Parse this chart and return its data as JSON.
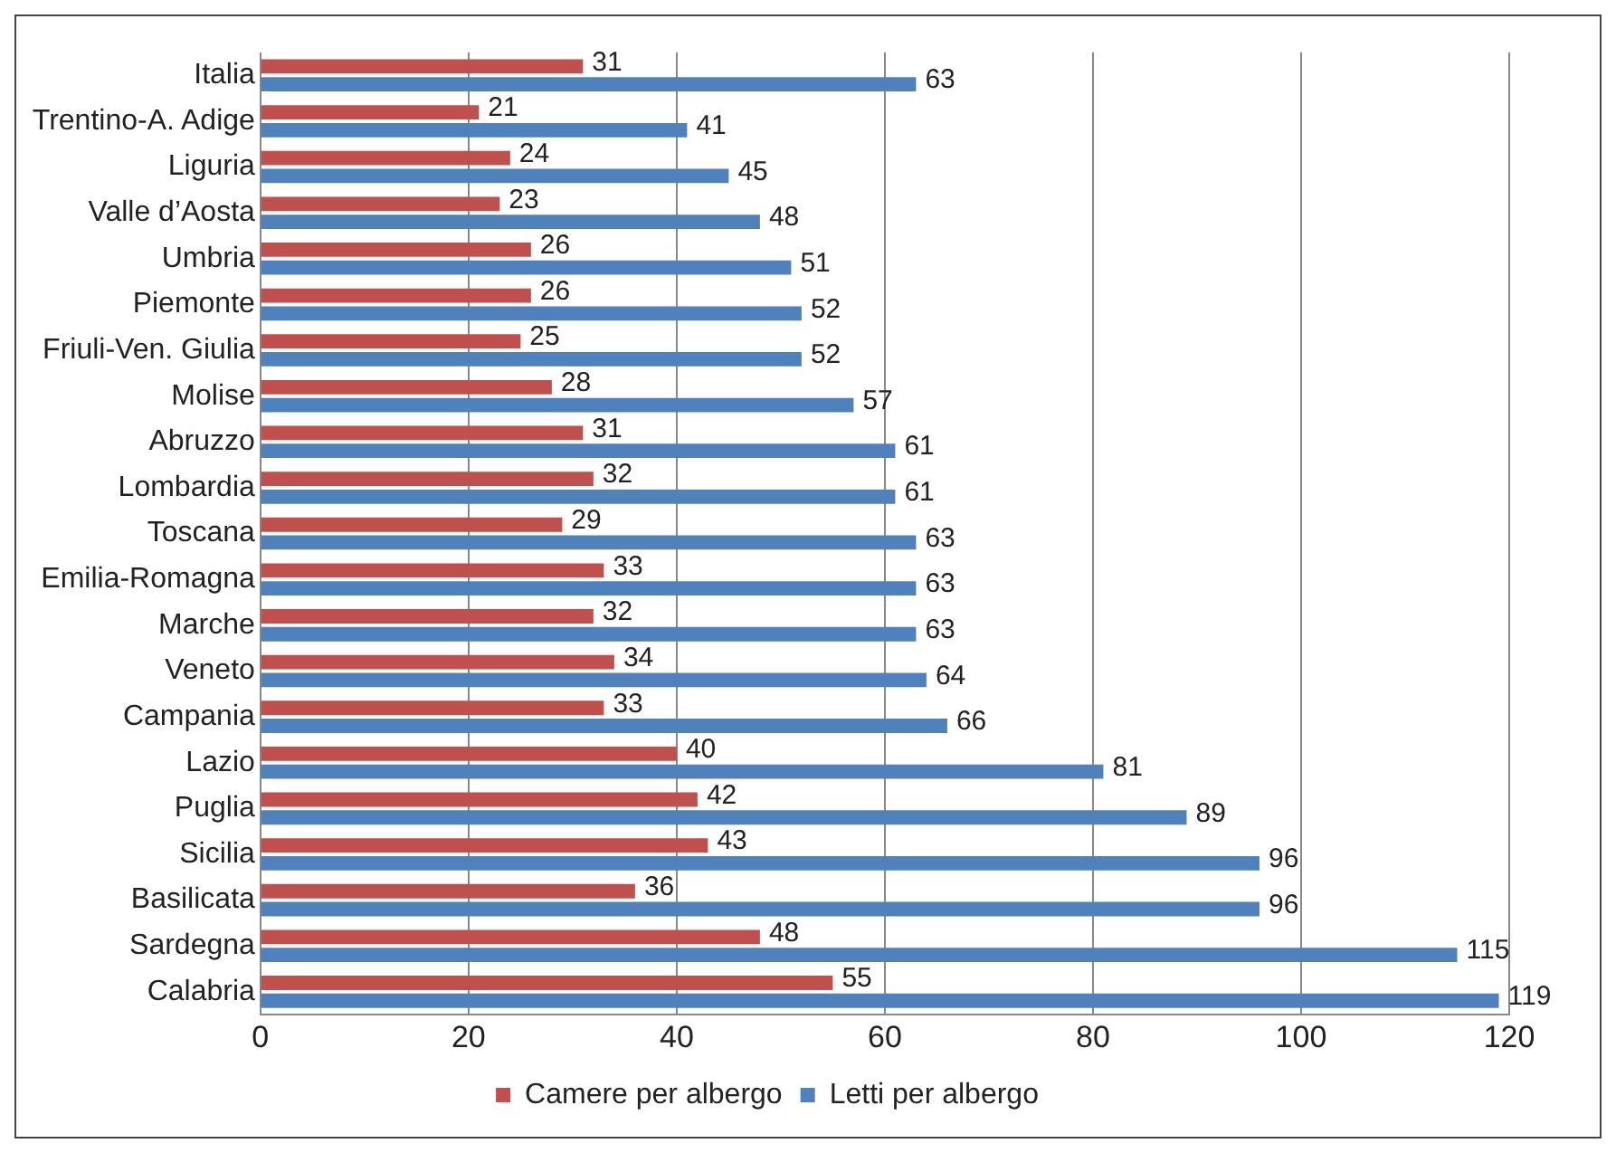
{
  "chart_data": {
    "type": "bar",
    "orientation": "horizontal",
    "categories": [
      "Italia",
      "Trentino-A. Adige",
      "Liguria",
      "Valle d’Aosta",
      "Umbria",
      "Piemonte",
      "Friuli-Ven. Giulia",
      "Molise",
      "Abruzzo",
      "Lombardia",
      "Toscana",
      "Emilia-Romagna",
      "Marche",
      "Veneto",
      "Campania",
      "Lazio",
      "Puglia",
      "Sicilia",
      "Basilicata",
      "Sardegna",
      "Calabria"
    ],
    "series": [
      {
        "name": "Camere per albergo",
        "color": "#c0504d",
        "values": [
          31,
          21,
          24,
          23,
          26,
          26,
          25,
          28,
          31,
          32,
          29,
          33,
          32,
          34,
          33,
          40,
          42,
          43,
          36,
          48,
          55
        ]
      },
      {
        "name": "Letti per albergo",
        "color": "#4f81bd",
        "values": [
          63,
          41,
          45,
          48,
          51,
          52,
          52,
          57,
          61,
          61,
          63,
          63,
          63,
          64,
          66,
          81,
          89,
          96,
          96,
          115,
          119
        ]
      }
    ],
    "xlim": [
      0,
      120
    ],
    "xticks": [
      0,
      20,
      40,
      60,
      80,
      100,
      120
    ],
    "grid": "x",
    "legend": "bottom",
    "data_labels": true
  }
}
